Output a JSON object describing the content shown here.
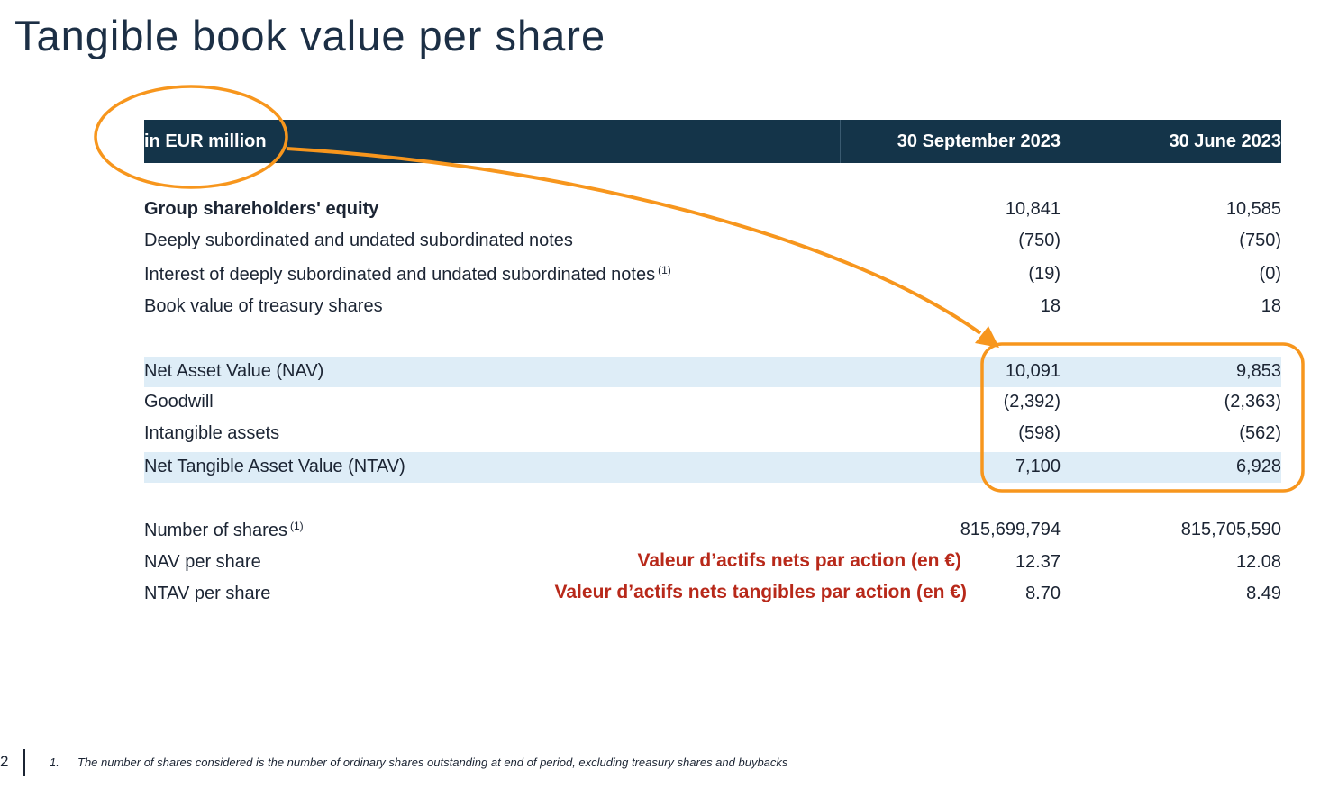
{
  "title": "Tangible book value per share",
  "table": {
    "header": [
      "in EUR million",
      "30 September 2023",
      "30 June 2023"
    ],
    "rows": [
      {
        "label": "Group shareholders' equity",
        "sup": "",
        "v1": "10,841",
        "v2": "10,585"
      },
      {
        "label": "Deeply subordinated and undated subordinated notes",
        "sup": "",
        "v1": "(750)",
        "v2": "(750)"
      },
      {
        "label": "Interest of deeply subordinated and undated subordinated notes",
        "sup": "(1)",
        "v1": "(19)",
        "v2": "(0)"
      },
      {
        "label": "Book value of treasury shares",
        "sup": "",
        "v1": "18",
        "v2": "18"
      },
      {
        "label": "Net Asset Value (NAV)",
        "sup": "",
        "v1": "10,091",
        "v2": "9,853"
      },
      {
        "label": "Goodwill",
        "sup": "",
        "v1": "(2,392)",
        "v2": "(2,363)"
      },
      {
        "label": "Intangible assets",
        "sup": "",
        "v1": "(598)",
        "v2": "(562)"
      },
      {
        "label": "Net Tangible Asset Value (NTAV)",
        "sup": "",
        "v1": "7,100",
        "v2": "6,928"
      },
      {
        "label": "Number of shares",
        "sup": "(1)",
        "v1": "815,699,794",
        "v2": "815,705,590"
      },
      {
        "label": "NAV per share",
        "sup": "",
        "v1": "12.37",
        "v2": "12.08"
      },
      {
        "label": "NTAV per share",
        "sup": "",
        "v1": "8.70",
        "v2": "8.49"
      }
    ]
  },
  "annotations": {
    "nav_fr": "Valeur d’actifs nets par action (en €)",
    "ntav_fr": "Valeur d’actifs nets tangibles par action  (en €)"
  },
  "footer": {
    "page": "2",
    "note_index": "1.",
    "note": "The number of shares considered is the number of ordinary shares outstanding at end of period, excluding treasury shares and buybacks"
  },
  "colors": {
    "header_bg": "#143449",
    "highlight_bg": "#deedf7",
    "annotation_orange": "#f7961d",
    "annotation_red": "#b8291a"
  }
}
